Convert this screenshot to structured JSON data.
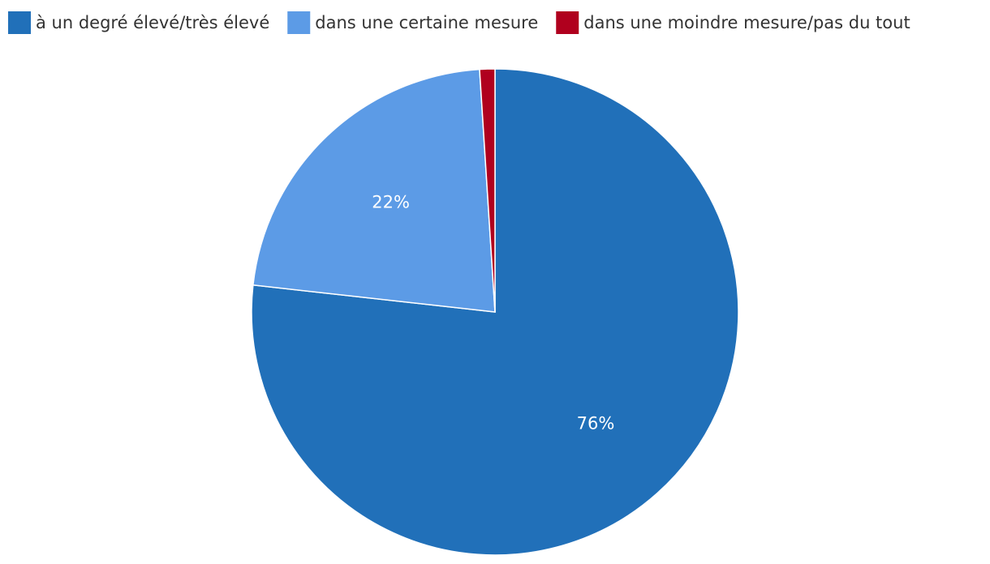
{
  "chart_data": {
    "type": "pie",
    "categories": [
      "à un degré élevé/très élevé",
      "dans une certaine mesure",
      "dans une moindre mesure/pas du tout"
    ],
    "values": [
      76,
      22,
      1
    ],
    "value_labels": [
      "76%",
      "22%",
      null
    ],
    "colors": [
      "#2170b9",
      "#5c9be6",
      "#b0001e"
    ],
    "legend": "top-left"
  }
}
